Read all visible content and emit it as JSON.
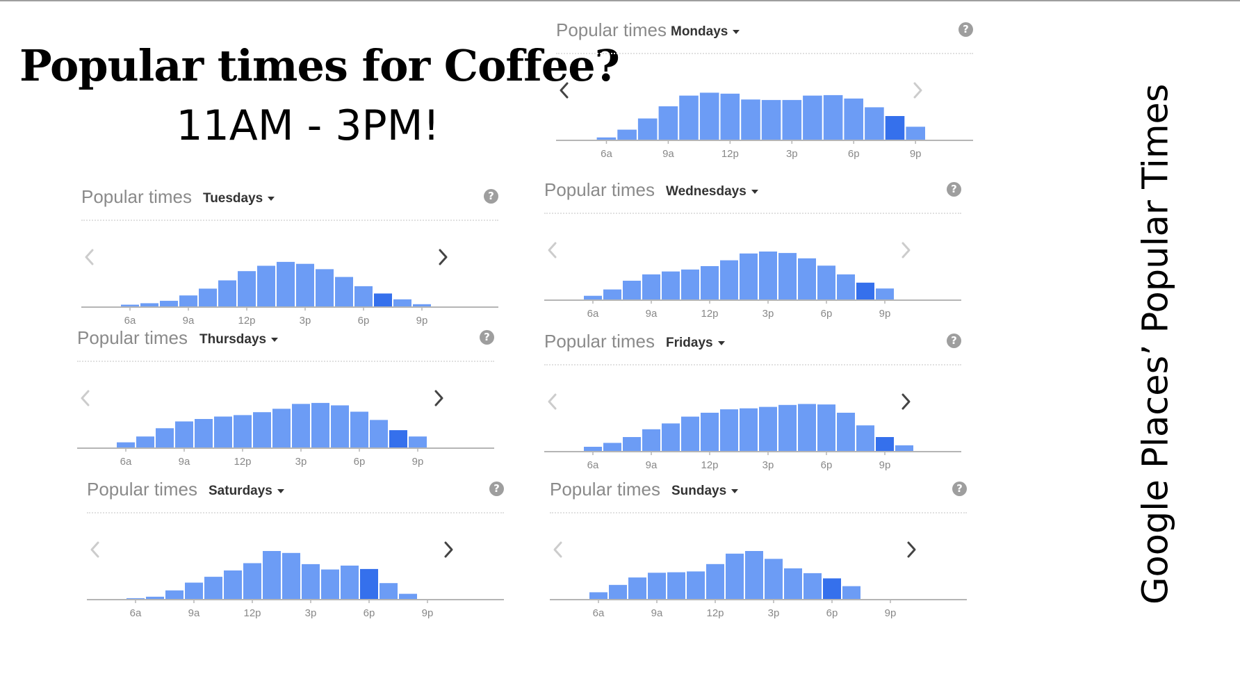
{
  "slide": {
    "title": "Popular times for Coffee?",
    "subtitle": "11AM - 3PM!",
    "side_caption": "Google Places’ Popular Times"
  },
  "colors": {
    "bar": "#6c9cf5",
    "bar_current": "#3570ec",
    "axis": "#b5b5b5",
    "tick_text": "#888888",
    "arrow_active": "#444444",
    "arrow_inactive": "#cccccc"
  },
  "icons": {
    "help": "?",
    "prev": "chevron-left-icon",
    "next": "chevron-right-icon"
  },
  "cards": [
    {
      "label": "Popular times",
      "day": "Mondays"
    },
    {
      "label": "Popular times",
      "day": "Tuesdays"
    },
    {
      "label": "Popular times",
      "day": "Wednesdays"
    },
    {
      "label": "Popular times",
      "day": "Thursdays"
    },
    {
      "label": "Popular times",
      "day": "Fridays"
    },
    {
      "label": "Popular times",
      "day": "Saturdays"
    },
    {
      "label": "Popular times",
      "day": "Sundays"
    }
  ],
  "chart_data": [
    {
      "type": "bar",
      "title": "Popular times",
      "day": "Mondays",
      "ticks": [
        "6a",
        "9a",
        "12p",
        "3p",
        "6p",
        "9p"
      ],
      "tick_hours": [
        6,
        9,
        12,
        15,
        18,
        21
      ],
      "start_hour": 5,
      "hours": 16,
      "values": [
        0,
        6,
        22,
        45,
        70,
        92,
        98,
        96,
        84,
        83,
        83,
        92,
        93,
        86,
        68,
        50,
        28
      ],
      "current_index": 15,
      "ylim": [
        0,
        100
      ],
      "prev_active": true,
      "next_active": false
    },
    {
      "type": "bar",
      "title": "Popular times",
      "day": "Tuesdays",
      "ticks": [
        "6a",
        "9a",
        "12p",
        "3p",
        "6p",
        "9p"
      ],
      "tick_hours": [
        6,
        9,
        12,
        15,
        18,
        21
      ],
      "start_hour": 5,
      "hours": 17,
      "values": [
        0,
        5,
        8,
        13,
        24,
        38,
        55,
        74,
        85,
        93,
        89,
        78,
        62,
        43,
        28,
        16,
        6
      ],
      "current_index": 14,
      "ylim": [
        0,
        100
      ],
      "prev_active": false,
      "next_active": true
    },
    {
      "type": "bar",
      "title": "Popular times",
      "day": "Wednesdays",
      "ticks": [
        "6a",
        "9a",
        "12p",
        "3p",
        "6p",
        "9p"
      ],
      "tick_hours": [
        6,
        9,
        12,
        15,
        18,
        21
      ],
      "start_hour": 5,
      "hours": 17,
      "values": [
        0,
        9,
        22,
        40,
        53,
        59,
        63,
        70,
        82,
        96,
        100,
        97,
        86,
        71,
        53,
        36,
        24
      ],
      "current_index": 15,
      "ylim": [
        0,
        100
      ],
      "prev_active": false,
      "next_active": false
    },
    {
      "type": "bar",
      "title": "Popular times",
      "day": "Thursdays",
      "ticks": [
        "6a",
        "9a",
        "12p",
        "3p",
        "6p",
        "9p"
      ],
      "tick_hours": [
        6,
        9,
        12,
        15,
        18,
        21
      ],
      "start_hour": 5,
      "hours": 17,
      "values": [
        0,
        12,
        24,
        41,
        55,
        60,
        65,
        68,
        74,
        81,
        91,
        93,
        88,
        75,
        58,
        37,
        24
      ],
      "current_index": 15,
      "ylim": [
        0,
        100
      ],
      "prev_active": false,
      "next_active": true
    },
    {
      "type": "bar",
      "title": "Popular times",
      "day": "Fridays",
      "ticks": [
        "6a",
        "9a",
        "12p",
        "3p",
        "6p",
        "9p"
      ],
      "tick_hours": [
        6,
        9,
        12,
        15,
        18,
        21
      ],
      "start_hour": 5,
      "hours": 17,
      "values": [
        0,
        10,
        18,
        30,
        46,
        58,
        72,
        80,
        87,
        89,
        92,
        96,
        98,
        97,
        80,
        54,
        30,
        13
      ],
      "current_index": 16,
      "ylim": [
        0,
        100
      ],
      "prev_active": false,
      "next_active": true
    },
    {
      "type": "bar",
      "title": "Popular times",
      "day": "Saturdays",
      "ticks": [
        "6a",
        "9a",
        "12p",
        "3p",
        "6p",
        "9p"
      ],
      "tick_hours": [
        6,
        9,
        12,
        15,
        18,
        21
      ],
      "start_hour": 5,
      "hours": 17,
      "values": [
        0,
        3,
        6,
        19,
        35,
        47,
        60,
        75,
        100,
        96,
        73,
        62,
        70,
        63,
        34,
        12
      ],
      "current_index": 13,
      "ylim": [
        0,
        100
      ],
      "prev_active": false,
      "next_active": true
    },
    {
      "type": "bar",
      "title": "Popular times",
      "day": "Sundays",
      "ticks": [
        "6a",
        "9a",
        "12p",
        "3p",
        "6p",
        "9p"
      ],
      "tick_hours": [
        6,
        9,
        12,
        15,
        18,
        21
      ],
      "start_hour": 5,
      "hours": 17,
      "values": [
        0,
        17,
        34,
        51,
        62,
        63,
        65,
        82,
        106,
        112,
        94,
        72,
        61,
        49,
        31
      ],
      "current_index": 13,
      "ylim": [
        0,
        112
      ],
      "prev_active": false,
      "next_active": true
    }
  ]
}
